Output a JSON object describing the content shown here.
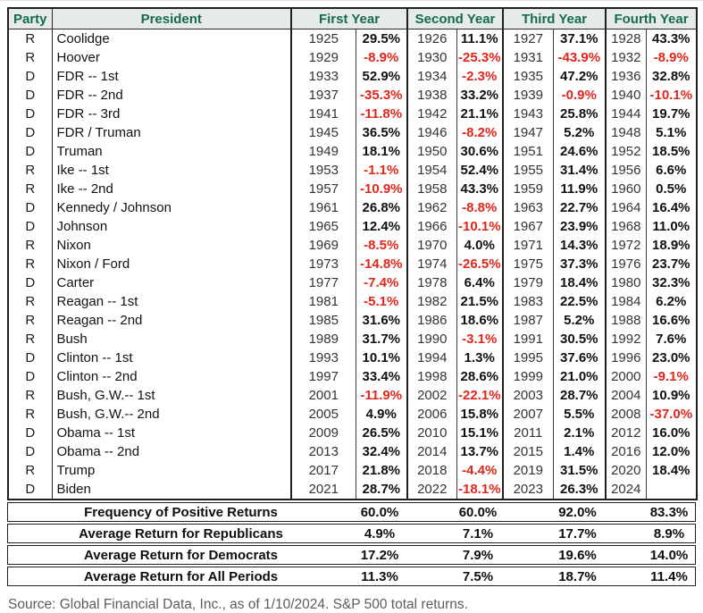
{
  "chart_data": {
    "type": "table",
    "columns": [
      "Party",
      "President",
      "First Year",
      "Second Year",
      "Third Year",
      "Fourth Year"
    ],
    "rows": [
      {
        "party": "R",
        "president": "Coolidge",
        "pairs": [
          [
            "1925",
            "29.5%"
          ],
          [
            "1926",
            "11.1%"
          ],
          [
            "1927",
            "37.1%"
          ],
          [
            "1928",
            "43.3%"
          ]
        ]
      },
      {
        "party": "R",
        "president": "Hoover",
        "pairs": [
          [
            "1929",
            "-8.9%"
          ],
          [
            "1930",
            "-25.3%"
          ],
          [
            "1931",
            "-43.9%"
          ],
          [
            "1932",
            "-8.9%"
          ]
        ]
      },
      {
        "party": "D",
        "president": "FDR -- 1st",
        "pairs": [
          [
            "1933",
            "52.9%"
          ],
          [
            "1934",
            "-2.3%"
          ],
          [
            "1935",
            "47.2%"
          ],
          [
            "1936",
            "32.8%"
          ]
        ]
      },
      {
        "party": "D",
        "president": "FDR -- 2nd",
        "pairs": [
          [
            "1937",
            "-35.3%"
          ],
          [
            "1938",
            "33.2%"
          ],
          [
            "1939",
            "-0.9%"
          ],
          [
            "1940",
            "-10.1%"
          ]
        ]
      },
      {
        "party": "D",
        "president": "FDR -- 3rd",
        "pairs": [
          [
            "1941",
            "-11.8%"
          ],
          [
            "1942",
            "21.1%"
          ],
          [
            "1943",
            "25.8%"
          ],
          [
            "1944",
            "19.7%"
          ]
        ]
      },
      {
        "party": "D",
        "president": "FDR / Truman",
        "pairs": [
          [
            "1945",
            "36.5%"
          ],
          [
            "1946",
            "-8.2%"
          ],
          [
            "1947",
            "5.2%"
          ],
          [
            "1948",
            "5.1%"
          ]
        ]
      },
      {
        "party": "D",
        "president": "Truman",
        "pairs": [
          [
            "1949",
            "18.1%"
          ],
          [
            "1950",
            "30.6%"
          ],
          [
            "1951",
            "24.6%"
          ],
          [
            "1952",
            "18.5%"
          ]
        ]
      },
      {
        "party": "R",
        "president": "Ike -- 1st",
        "pairs": [
          [
            "1953",
            "-1.1%"
          ],
          [
            "1954",
            "52.4%"
          ],
          [
            "1955",
            "31.4%"
          ],
          [
            "1956",
            "6.6%"
          ]
        ]
      },
      {
        "party": "R",
        "president": "Ike -- 2nd",
        "pairs": [
          [
            "1957",
            "-10.9%"
          ],
          [
            "1958",
            "43.3%"
          ],
          [
            "1959",
            "11.9%"
          ],
          [
            "1960",
            "0.5%"
          ]
        ]
      },
      {
        "party": "D",
        "president": "Kennedy / Johnson",
        "pairs": [
          [
            "1961",
            "26.8%"
          ],
          [
            "1962",
            "-8.8%"
          ],
          [
            "1963",
            "22.7%"
          ],
          [
            "1964",
            "16.4%"
          ]
        ]
      },
      {
        "party": "D",
        "president": "Johnson",
        "pairs": [
          [
            "1965",
            "12.4%"
          ],
          [
            "1966",
            "-10.1%"
          ],
          [
            "1967",
            "23.9%"
          ],
          [
            "1968",
            "11.0%"
          ]
        ]
      },
      {
        "party": "R",
        "president": "Nixon",
        "pairs": [
          [
            "1969",
            "-8.5%"
          ],
          [
            "1970",
            "4.0%"
          ],
          [
            "1971",
            "14.3%"
          ],
          [
            "1972",
            "18.9%"
          ]
        ]
      },
      {
        "party": "R",
        "president": "Nixon / Ford",
        "pairs": [
          [
            "1973",
            "-14.8%"
          ],
          [
            "1974",
            "-26.5%"
          ],
          [
            "1975",
            "37.3%"
          ],
          [
            "1976",
            "23.7%"
          ]
        ]
      },
      {
        "party": "D",
        "president": "Carter",
        "pairs": [
          [
            "1977",
            "-7.4%"
          ],
          [
            "1978",
            "6.4%"
          ],
          [
            "1979",
            "18.4%"
          ],
          [
            "1980",
            "32.3%"
          ]
        ]
      },
      {
        "party": "R",
        "president": "Reagan -- 1st",
        "pairs": [
          [
            "1981",
            "-5.1%"
          ],
          [
            "1982",
            "21.5%"
          ],
          [
            "1983",
            "22.5%"
          ],
          [
            "1984",
            "6.2%"
          ]
        ]
      },
      {
        "party": "R",
        "president": "Reagan -- 2nd",
        "pairs": [
          [
            "1985",
            "31.6%"
          ],
          [
            "1986",
            "18.6%"
          ],
          [
            "1987",
            "5.2%"
          ],
          [
            "1988",
            "16.6%"
          ]
        ]
      },
      {
        "party": "R",
        "president": "Bush",
        "pairs": [
          [
            "1989",
            "31.7%"
          ],
          [
            "1990",
            "-3.1%"
          ],
          [
            "1991",
            "30.5%"
          ],
          [
            "1992",
            "7.6%"
          ]
        ]
      },
      {
        "party": "D",
        "president": "Clinton -- 1st",
        "pairs": [
          [
            "1993",
            "10.1%"
          ],
          [
            "1994",
            "1.3%"
          ],
          [
            "1995",
            "37.6%"
          ],
          [
            "1996",
            "23.0%"
          ]
        ]
      },
      {
        "party": "D",
        "president": "Clinton -- 2nd",
        "pairs": [
          [
            "1997",
            "33.4%"
          ],
          [
            "1998",
            "28.6%"
          ],
          [
            "1999",
            "21.0%"
          ],
          [
            "2000",
            "-9.1%"
          ]
        ]
      },
      {
        "party": "R",
        "president": "Bush, G.W.-- 1st",
        "pairs": [
          [
            "2001",
            "-11.9%"
          ],
          [
            "2002",
            "-22.1%"
          ],
          [
            "2003",
            "28.7%"
          ],
          [
            "2004",
            "10.9%"
          ]
        ]
      },
      {
        "party": "R",
        "president": "Bush, G.W.-- 2nd",
        "pairs": [
          [
            "2005",
            "4.9%"
          ],
          [
            "2006",
            "15.8%"
          ],
          [
            "2007",
            "5.5%"
          ],
          [
            "2008",
            "-37.0%"
          ]
        ]
      },
      {
        "party": "D",
        "president": "Obama -- 1st",
        "pairs": [
          [
            "2009",
            "26.5%"
          ],
          [
            "2010",
            "15.1%"
          ],
          [
            "2011",
            "2.1%"
          ],
          [
            "2012",
            "16.0%"
          ]
        ]
      },
      {
        "party": "D",
        "president": "Obama -- 2nd",
        "pairs": [
          [
            "2013",
            "32.4%"
          ],
          [
            "2014",
            "13.7%"
          ],
          [
            "2015",
            "1.4%"
          ],
          [
            "2016",
            "12.0%"
          ]
        ]
      },
      {
        "party": "R",
        "president": "Trump",
        "pairs": [
          [
            "2017",
            "21.8%"
          ],
          [
            "2018",
            "-4.4%"
          ],
          [
            "2019",
            "31.5%"
          ],
          [
            "2020",
            "18.4%"
          ]
        ]
      },
      {
        "party": "D",
        "president": "Biden",
        "pairs": [
          [
            "2021",
            "28.7%"
          ],
          [
            "2022",
            "-18.1%"
          ],
          [
            "2023",
            "26.3%"
          ],
          [
            "2024",
            ""
          ]
        ]
      }
    ],
    "summary": [
      {
        "label": "Frequency of Positive Returns",
        "values": [
          "60.0%",
          "60.0%",
          "92.0%",
          "83.3%"
        ]
      },
      {
        "label": "Average Return for Republicans",
        "values": [
          "4.9%",
          "7.1%",
          "17.7%",
          "8.9%"
        ]
      },
      {
        "label": "Average Return for Democrats",
        "values": [
          "17.2%",
          "7.9%",
          "19.6%",
          "14.0%"
        ]
      },
      {
        "label": "Average Return for All Periods",
        "values": [
          "11.3%",
          "7.5%",
          "18.7%",
          "11.4%"
        ]
      }
    ]
  },
  "source_note": "Source: Global Financial Data, Inc., as of 1/10/2024. S&P 500 total returns.",
  "colors": {
    "header_text": "#156a50",
    "header_bg": "#e7ebe7",
    "negative_value": "#e1261b",
    "positive_value": "#101010"
  }
}
